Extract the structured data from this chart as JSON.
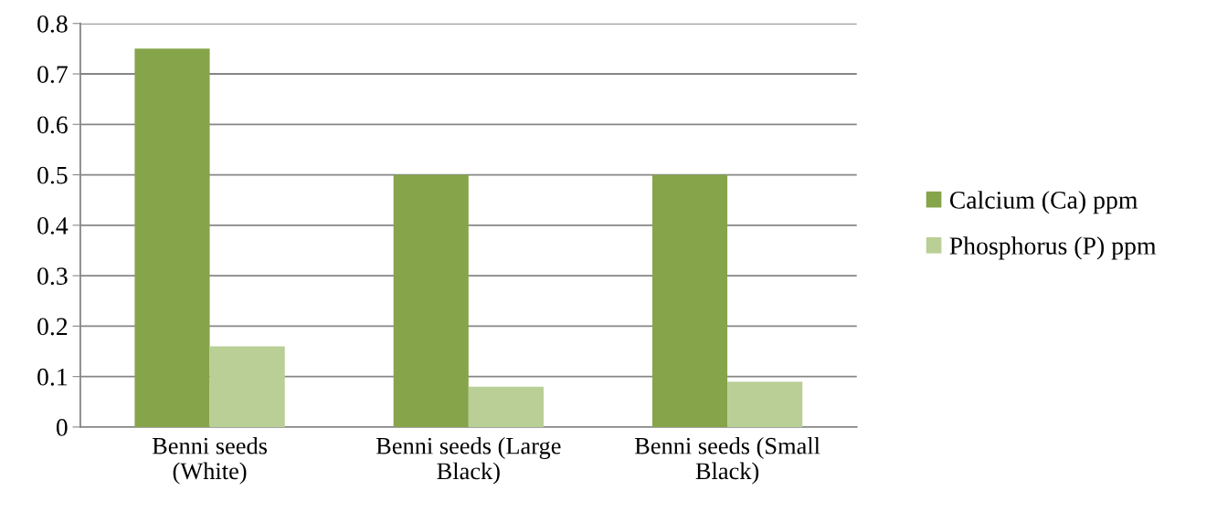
{
  "chart_data": {
    "type": "bar",
    "categories": [
      "Benni seeds (White)",
      "Benni seeds (Large Black)",
      "Benni seeds (Small Black)"
    ],
    "series": [
      {
        "name": "Calcium (Ca) ppm",
        "color": "#86a44a",
        "values": [
          0.75,
          0.5,
          0.5
        ]
      },
      {
        "name": "Phosphorus (P) ppm",
        "color": "#b9cf96",
        "values": [
          0.16,
          0.08,
          0.09
        ]
      }
    ],
    "ylim": [
      0,
      0.8
    ],
    "yticks": [
      {
        "value": 0,
        "label": "0"
      },
      0.1,
      0.2,
      0.3,
      0.4,
      0.5,
      0.6,
      0.7,
      0.8
    ],
    "grid": "y",
    "legend": "right"
  }
}
